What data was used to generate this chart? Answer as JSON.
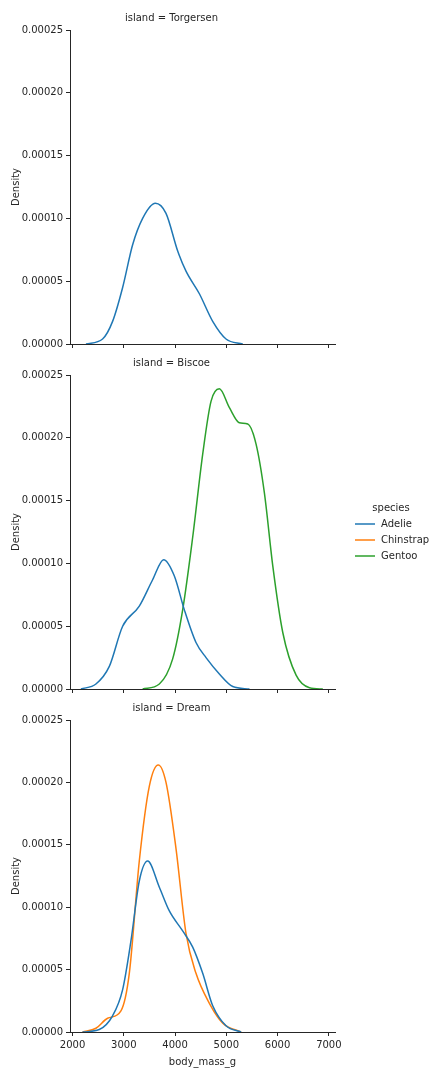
{
  "chart_data": [
    {
      "type": "line",
      "title": "island = Torgersen",
      "ylabel": "Density",
      "xlim": [
        1950,
        7120
      ],
      "xticks": [
        2000,
        3000,
        4000,
        5000,
        6000,
        7000
      ],
      "ylim": [
        0,
        0.00025
      ],
      "yticks": [
        {
          "value": 0,
          "label": "0.00000"
        },
        {
          "value": 5e-05,
          "label": "0.00005"
        },
        {
          "value": 0.0001,
          "label": "0.00010"
        },
        {
          "value": 0.00015,
          "label": "0.00015"
        },
        {
          "value": 0.0002,
          "label": "0.00020"
        },
        {
          "value": 0.00025,
          "label": "0.00025"
        }
      ],
      "tick_labels": "y",
      "grid": false,
      "legend": false,
      "series": [
        {
          "color": "#1f77b4",
          "x": [
            2262,
            2586,
            2781,
            2977,
            3172,
            3367,
            3615,
            3823,
            4051,
            4213,
            4474,
            4734,
            4994,
            5320
          ],
          "values": [
            0,
            4e-06,
            1.8e-05,
            4.5e-05,
            7.9e-05,
            0.0001,
            0.000112,
            0.000104,
            7.4e-05,
            5.8e-05,
            4e-05,
            1.8e-05,
            4e-06,
            0
          ]
        }
      ]
    },
    {
      "type": "line",
      "title": "island = Biscoe",
      "ylabel": "Density",
      "legend_title": "species",
      "xlim": [
        1950,
        7120
      ],
      "xticks": [
        2000,
        3000,
        4000,
        5000,
        6000,
        7000
      ],
      "ylim": [
        0,
        0.00025
      ],
      "yticks": [
        {
          "value": 0,
          "label": "0.00000"
        },
        {
          "value": 5e-05,
          "label": "0.00005"
        },
        {
          "value": 0.0001,
          "label": "0.00010"
        },
        {
          "value": 0.00015,
          "label": "0.00015"
        },
        {
          "value": 0.0002,
          "label": "0.00020"
        },
        {
          "value": 0.00025,
          "label": "0.00025"
        }
      ],
      "tick_labels": "y",
      "grid": false,
      "legend": "right",
      "series": [
        {
          "name": "Adelie",
          "color": "#1f77b4",
          "x": [
            2163,
            2456,
            2717,
            2977,
            3302,
            3562,
            3777,
            3986,
            4181,
            4408,
            4604,
            4864,
            5125,
            5451
          ],
          "values": [
            0,
            4e-06,
            1.8e-05,
            5e-05,
            6.6e-05,
            8.7e-05,
            0.000103,
            9e-05,
            6.3e-05,
            3.7e-05,
            2.5e-05,
            1.2e-05,
            2e-06,
            0
          ]
        },
        {
          "name": "Chinstrap",
          "color": "#ff7f0e"
        },
        {
          "name": "Gentoo",
          "color": "#2ca02c",
          "x": [
            3367,
            3693,
            3953,
            4148,
            4344,
            4539,
            4701,
            4864,
            5060,
            5255,
            5418,
            5580,
            5743,
            5906,
            6101,
            6361,
            6622,
            6882
          ],
          "values": [
            0,
            4e-06,
            2.4e-05,
            6.3e-05,
            0.000121,
            0.000187,
            0.000229,
            0.000239,
            0.000224,
            0.000212,
            0.000211,
            0.000195,
            0.000156,
            9.8e-05,
            4.5e-05,
            1.1e-05,
            1e-06,
            0
          ]
        }
      ]
    },
    {
      "type": "line",
      "title": "island = Dream",
      "xlabel": "body_mass_g",
      "ylabel": "Density",
      "xlim": [
        1950,
        7120
      ],
      "xticks": [
        2000,
        3000,
        4000,
        5000,
        6000,
        7000
      ],
      "ylim": [
        0,
        0.00025
      ],
      "yticks": [
        {
          "value": 0,
          "label": "0.00000"
        },
        {
          "value": 5e-05,
          "label": "0.00005"
        },
        {
          "value": 0.0001,
          "label": "0.00010"
        },
        {
          "value": 0.00015,
          "label": "0.00015"
        },
        {
          "value": 0.0002,
          "label": "0.00020"
        },
        {
          "value": 0.00025,
          "label": "0.00025"
        }
      ],
      "grid": false,
      "legend": false,
      "series": [
        {
          "color": "#1f77b4",
          "x": [
            2195,
            2521,
            2781,
            2977,
            3139,
            3302,
            3465,
            3693,
            3888,
            4148,
            4344,
            4539,
            4734,
            4994,
            5288
          ],
          "values": [
            0,
            2e-06,
            1.3e-05,
            3.4e-05,
            7.3e-05,
            0.000121,
            0.000137,
            0.000116,
            9.7e-05,
            8.1e-05,
            6.8e-05,
            4.7e-05,
            2.1e-05,
            5e-06,
            0
          ]
        },
        {
          "color": "#ff7f0e",
          "x": [
            2195,
            2456,
            2684,
            2944,
            3107,
            3302,
            3498,
            3673,
            3823,
            4018,
            4213,
            4408,
            4669,
            4930,
            5288
          ],
          "values": [
            0,
            3e-06,
            1.1e-05,
            1.7e-05,
            4.7e-05,
            0.000137,
            0.000197,
            0.000214,
            0.0002,
            0.000147,
            7.9e-05,
            4.7e-05,
            2.3e-05,
            7e-06,
            0
          ]
        }
      ]
    }
  ]
}
